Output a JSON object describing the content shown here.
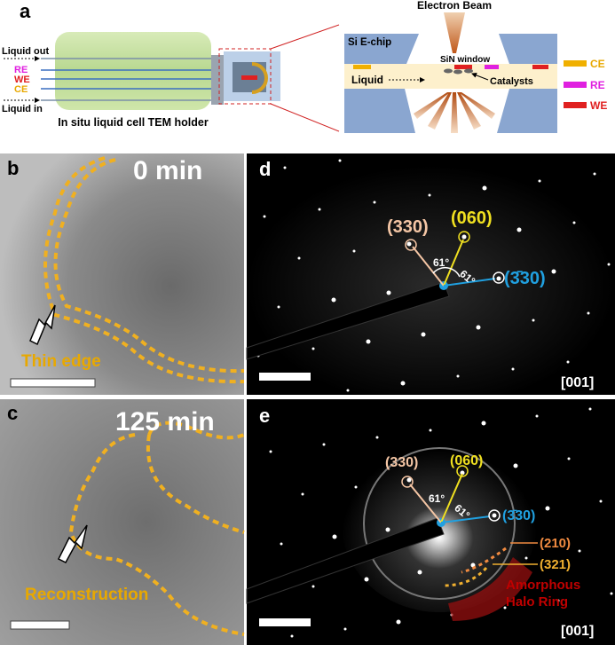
{
  "panel_a": {
    "label": "a",
    "liquid_out": "Liquid out",
    "re": "RE",
    "we": "WE",
    "ce": "CE",
    "liquid_in": "Liquid in",
    "holder_caption": "In situ liquid cell TEM holder",
    "electron_beam": "Electron Beam",
    "chip": "Si E-chip",
    "window": "SiN window",
    "liquid": "Liquid",
    "catalysts": "Catalysts",
    "legend": [
      "CE",
      "RE",
      "WE"
    ]
  },
  "panel_b": {
    "label": "b",
    "time": "0 min",
    "annotation": "Thin edge"
  },
  "panel_c": {
    "label": "c",
    "time": "125 min",
    "annotation": "Reconstruction"
  },
  "panel_d": {
    "label": "d",
    "spots": [
      "(330)",
      "(060)",
      "(3̄30)"
    ],
    "angles": [
      "61°",
      "61°"
    ],
    "zone_axis": "[001]"
  },
  "panel_e": {
    "label": "e",
    "spots": [
      "(330)",
      "(060)",
      "(3̄30)",
      "(210)",
      "(321)"
    ],
    "angles": [
      "61°",
      "61°"
    ],
    "halo": [
      "Amorphous",
      "Halo Ring"
    ],
    "zone_axis": "[001]"
  }
}
